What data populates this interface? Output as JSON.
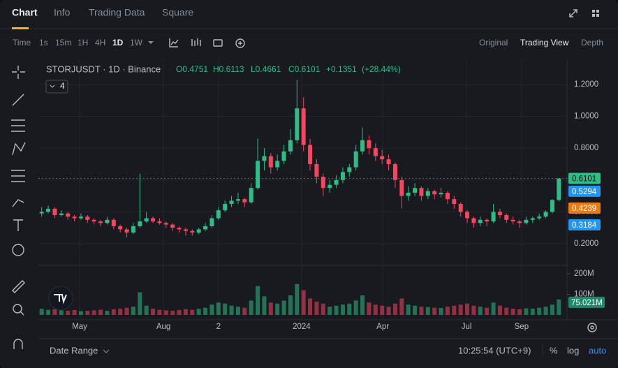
{
  "tabs": [
    "Chart",
    "Info",
    "Trading Data",
    "Square"
  ],
  "toolbar": {
    "intervals": [
      "Time",
      "1s",
      "15m",
      "1H",
      "4H",
      "1D",
      "1W"
    ],
    "views": [
      "Original",
      "Trading View",
      "Depth"
    ]
  },
  "legend": {
    "symbol": "STORJUSDT · 1D · Binance",
    "fields": [
      "O0.4751",
      "H0.6113",
      "L0.4661",
      "C0.6101",
      "+0.1351",
      "(+28.44%)"
    ],
    "indicator_count": "4"
  },
  "footer": {
    "range": "Date Range",
    "clock": "10:25:54 (UTC+9)",
    "buttons": [
      "%",
      "log",
      "auto"
    ]
  },
  "chart_data": {
    "type": "candlestick",
    "up_color": "#2ebd85",
    "down_color": "#f6465d",
    "grid": true,
    "ylim": [
      0.1,
      1.3
    ],
    "yticks": [
      {
        "value": 0.2,
        "label": "0.2000"
      },
      {
        "value": 0.4,
        "label": "0.4000"
      },
      {
        "value": 0.6,
        "label": "0.6000"
      },
      {
        "value": 0.8,
        "label": "0.8000"
      },
      {
        "value": 1.0,
        "label": "1.0000"
      },
      {
        "value": 1.2,
        "label": "1.2000"
      }
    ],
    "xticks": [
      {
        "value": 5.8,
        "label": "May"
      },
      {
        "value": 18.6,
        "label": "Aug"
      },
      {
        "value": 27,
        "label": "2"
      },
      {
        "value": 39.7,
        "label": "2024"
      },
      {
        "value": 52.1,
        "label": "Apr"
      },
      {
        "value": 64.9,
        "label": "Jul"
      },
      {
        "value": 73.3,
        "label": "Sep"
      }
    ],
    "candles": [
      [
        0.39,
        0.43,
        0.37,
        0.4
      ],
      [
        0.4,
        0.44,
        0.39,
        0.42
      ],
      [
        0.42,
        0.43,
        0.36,
        0.38
      ],
      [
        0.38,
        0.41,
        0.37,
        0.39
      ],
      [
        0.39,
        0.4,
        0.35,
        0.37
      ],
      [
        0.37,
        0.38,
        0.34,
        0.36
      ],
      [
        0.36,
        0.39,
        0.35,
        0.37
      ],
      [
        0.37,
        0.38,
        0.33,
        0.35
      ],
      [
        0.35,
        0.36,
        0.32,
        0.34
      ],
      [
        0.34,
        0.35,
        0.31,
        0.33
      ],
      [
        0.33,
        0.37,
        0.32,
        0.35
      ],
      [
        0.35,
        0.36,
        0.29,
        0.31
      ],
      [
        0.31,
        0.32,
        0.27,
        0.29
      ],
      [
        0.29,
        0.3,
        0.24,
        0.27
      ],
      [
        0.27,
        0.33,
        0.26,
        0.31
      ],
      [
        0.31,
        0.64,
        0.3,
        0.34
      ],
      [
        0.34,
        0.4,
        0.33,
        0.36
      ],
      [
        0.36,
        0.37,
        0.33,
        0.34
      ],
      [
        0.34,
        0.36,
        0.32,
        0.33
      ],
      [
        0.33,
        0.34,
        0.3,
        0.32
      ],
      [
        0.32,
        0.33,
        0.28,
        0.3
      ],
      [
        0.3,
        0.31,
        0.27,
        0.29
      ],
      [
        0.29,
        0.3,
        0.25,
        0.28
      ],
      [
        0.28,
        0.29,
        0.25,
        0.27
      ],
      [
        0.27,
        0.3,
        0.26,
        0.29
      ],
      [
        0.29,
        0.33,
        0.28,
        0.31
      ],
      [
        0.31,
        0.38,
        0.3,
        0.36
      ],
      [
        0.36,
        0.43,
        0.35,
        0.41
      ],
      [
        0.41,
        0.47,
        0.4,
        0.45
      ],
      [
        0.45,
        0.5,
        0.43,
        0.47
      ],
      [
        0.47,
        0.52,
        0.45,
        0.48
      ],
      [
        0.48,
        0.49,
        0.43,
        0.46
      ],
      [
        0.46,
        0.58,
        0.45,
        0.55
      ],
      [
        0.55,
        0.86,
        0.54,
        0.72
      ],
      [
        0.72,
        0.8,
        0.66,
        0.75
      ],
      [
        0.75,
        0.77,
        0.64,
        0.68
      ],
      [
        0.68,
        0.76,
        0.66,
        0.72
      ],
      [
        0.72,
        0.82,
        0.7,
        0.78
      ],
      [
        0.78,
        0.92,
        0.76,
        0.85
      ],
      [
        0.85,
        1.23,
        0.83,
        1.05
      ],
      [
        1.05,
        1.12,
        0.78,
        0.82
      ],
      [
        0.82,
        0.86,
        0.66,
        0.7
      ],
      [
        0.7,
        0.73,
        0.58,
        0.62
      ],
      [
        0.62,
        0.64,
        0.5,
        0.55
      ],
      [
        0.55,
        0.6,
        0.52,
        0.57
      ],
      [
        0.57,
        0.63,
        0.55,
        0.6
      ],
      [
        0.6,
        0.68,
        0.58,
        0.65
      ],
      [
        0.65,
        0.7,
        0.62,
        0.68
      ],
      [
        0.68,
        0.82,
        0.66,
        0.78
      ],
      [
        0.78,
        0.93,
        0.76,
        0.85
      ],
      [
        0.85,
        0.88,
        0.76,
        0.8
      ],
      [
        0.8,
        0.83,
        0.72,
        0.75
      ],
      [
        0.75,
        0.79,
        0.7,
        0.73
      ],
      [
        0.73,
        0.76,
        0.66,
        0.7
      ],
      [
        0.7,
        0.71,
        0.55,
        0.6
      ],
      [
        0.6,
        0.62,
        0.42,
        0.5
      ],
      [
        0.5,
        0.56,
        0.47,
        0.52
      ],
      [
        0.52,
        0.58,
        0.5,
        0.55
      ],
      [
        0.55,
        0.56,
        0.47,
        0.5
      ],
      [
        0.5,
        0.55,
        0.48,
        0.53
      ],
      [
        0.53,
        0.54,
        0.48,
        0.51
      ],
      [
        0.51,
        0.55,
        0.49,
        0.52
      ],
      [
        0.52,
        0.53,
        0.45,
        0.48
      ],
      [
        0.48,
        0.5,
        0.42,
        0.45
      ],
      [
        0.45,
        0.46,
        0.37,
        0.4
      ],
      [
        0.4,
        0.41,
        0.33,
        0.36
      ],
      [
        0.36,
        0.37,
        0.3,
        0.33
      ],
      [
        0.33,
        0.37,
        0.31,
        0.35
      ],
      [
        0.35,
        0.36,
        0.31,
        0.34
      ],
      [
        0.34,
        0.45,
        0.33,
        0.4
      ],
      [
        0.4,
        0.42,
        0.36,
        0.38
      ],
      [
        0.38,
        0.39,
        0.33,
        0.35
      ],
      [
        0.35,
        0.37,
        0.32,
        0.34
      ],
      [
        0.34,
        0.35,
        0.3,
        0.33
      ],
      [
        0.33,
        0.37,
        0.32,
        0.35
      ],
      [
        0.35,
        0.37,
        0.33,
        0.36
      ],
      [
        0.36,
        0.39,
        0.35,
        0.37
      ],
      [
        0.37,
        0.41,
        0.36,
        0.4
      ],
      [
        0.4,
        0.48,
        0.39,
        0.4751
      ],
      [
        0.4751,
        0.6113,
        0.4661,
        0.6101
      ]
    ],
    "volume": [
      30,
      25,
      28,
      22,
      20,
      24,
      18,
      20,
      22,
      25,
      20,
      28,
      30,
      35,
      40,
      110,
      45,
      30,
      25,
      22,
      20,
      24,
      28,
      25,
      30,
      35,
      50,
      60,
      55,
      45,
      40,
      35,
      70,
      140,
      90,
      60,
      55,
      70,
      95,
      150,
      120,
      80,
      65,
      55,
      40,
      45,
      50,
      55,
      70,
      95,
      60,
      50,
      45,
      40,
      55,
      80,
      50,
      45,
      40,
      38,
      35,
      34,
      40,
      45,
      50,
      55,
      45,
      40,
      35,
      60,
      45,
      35,
      30,
      28,
      32,
      30,
      35,
      40,
      50,
      75.021
    ],
    "vlim": [
      0,
      200
    ],
    "vticks": [
      {
        "value": 100,
        "label": "100M"
      },
      {
        "value": 200,
        "label": "200M"
      }
    ],
    "volume_tag": {
      "value": 75.021,
      "label": "75.021M",
      "color": "#1f8a6a"
    },
    "price_tags": [
      {
        "value": 0.6101,
        "color": "#2ebd85",
        "text_color": "#0b0e11"
      },
      {
        "value": 0.5294,
        "color": "#2196f3",
        "text_color": "#ffffff"
      },
      {
        "value": 0.4239,
        "color": "#f0780f",
        "text_color": "#ffffff"
      },
      {
        "value": 0.3184,
        "color": "#2196f3",
        "text_color": "#ffffff"
      }
    ]
  }
}
